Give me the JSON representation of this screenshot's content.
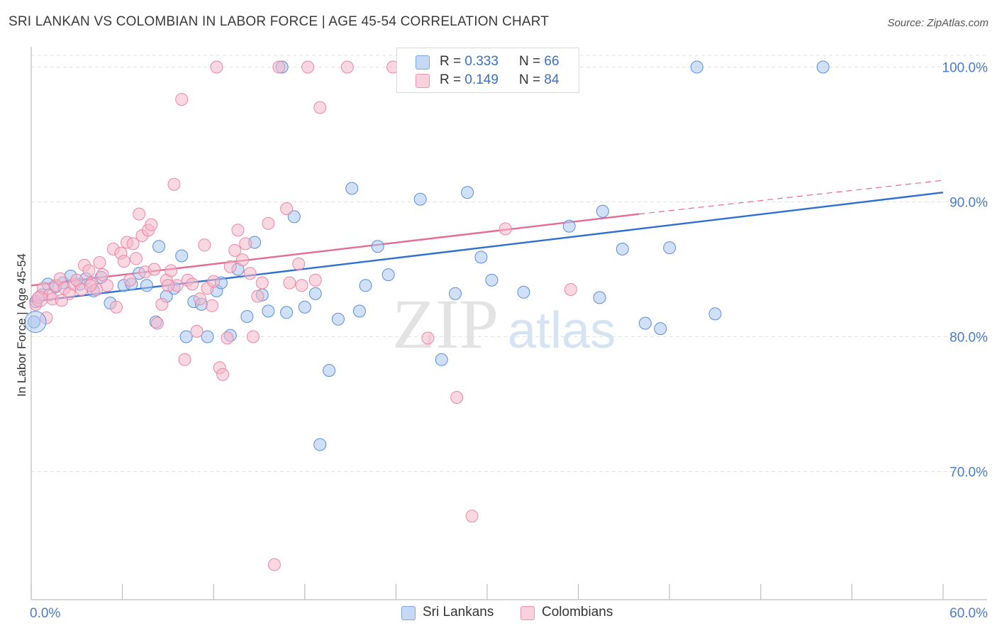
{
  "title": "SRI LANKAN VS COLOMBIAN IN LABOR FORCE | AGE 45-54 CORRELATION CHART",
  "source": "Source: ZipAtlas.com",
  "watermark": {
    "zip": "ZIP",
    "atlas": "atlas"
  },
  "legend": {
    "r_label": "R =",
    "n_label": "N =",
    "rows": [
      {
        "r": "0.333",
        "n": "66",
        "color": "#a9c6ef"
      },
      {
        "r": "0.149",
        "n": "84",
        "color": "#f6b8cb"
      }
    ]
  },
  "bottom_legend": [
    "Sri Lankans",
    "Colombians"
  ],
  "chart_data": {
    "type": "scatter",
    "title": "SRI LANKAN VS COLOMBIAN IN LABOR FORCE | AGE 45-54 CORRELATION CHART",
    "xlabel": "",
    "ylabel": "In Labor Force | Age 45-54",
    "xlim": [
      0,
      60
    ],
    "ylim": [
      60.5,
      101.5
    ],
    "x_tick_labels": [
      "0.0%",
      "60.0%"
    ],
    "y_ticks": [
      70,
      80,
      90,
      100
    ],
    "y_tick_labels": [
      "70.0%",
      "80.0%",
      "90.0%",
      "100.0%"
    ],
    "grid": true,
    "legend_position": "top-center",
    "series": [
      {
        "name": "Sri Lankans",
        "color": "#a9c6ef",
        "edge": "#5b8fd8",
        "line_color": "#2f6fd0",
        "trend": {
          "x": [
            0,
            60
          ],
          "y": [
            82.6,
            90.7
          ]
        },
        "points": [
          [
            0.1,
            81.1
          ],
          [
            0.3,
            82.6
          ],
          [
            0.7,
            83.1
          ],
          [
            1.1,
            83.9
          ],
          [
            1.6,
            83.7
          ],
          [
            2.1,
            84.0
          ],
          [
            2.6,
            84.5
          ],
          [
            3.2,
            83.9
          ],
          [
            3.6,
            84.3
          ],
          [
            4.1,
            83.4
          ],
          [
            4.6,
            84.4
          ],
          [
            5.2,
            82.5
          ],
          [
            6.1,
            83.8
          ],
          [
            6.6,
            83.9
          ],
          [
            7.1,
            84.7
          ],
          [
            7.6,
            83.8
          ],
          [
            8.2,
            81.1
          ],
          [
            8.4,
            86.7
          ],
          [
            8.9,
            83.0
          ],
          [
            9.4,
            83.6
          ],
          [
            9.9,
            86.0
          ],
          [
            10.2,
            80.0
          ],
          [
            10.7,
            82.6
          ],
          [
            11.2,
            82.4
          ],
          [
            11.6,
            80.0
          ],
          [
            12.2,
            83.4
          ],
          [
            12.5,
            84.0
          ],
          [
            13.1,
            80.1
          ],
          [
            13.6,
            85.0
          ],
          [
            14.2,
            81.5
          ],
          [
            14.7,
            87.0
          ],
          [
            15.2,
            83.1
          ],
          [
            15.6,
            81.9
          ],
          [
            16.5,
            100.0
          ],
          [
            16.8,
            81.8
          ],
          [
            17.3,
            88.9
          ],
          [
            18.0,
            82.2
          ],
          [
            18.7,
            83.2
          ],
          [
            19.0,
            72.0
          ],
          [
            19.6,
            77.5
          ],
          [
            20.2,
            81.3
          ],
          [
            21.1,
            91.0
          ],
          [
            21.6,
            81.9
          ],
          [
            22.0,
            83.8
          ],
          [
            22.8,
            86.7
          ],
          [
            23.5,
            84.6
          ],
          [
            25.6,
            90.2
          ],
          [
            27.0,
            78.3
          ],
          [
            27.5,
            100.0
          ],
          [
            27.9,
            83.2
          ],
          [
            28.7,
            90.7
          ],
          [
            29.6,
            85.9
          ],
          [
            30.0,
            100.0
          ],
          [
            30.3,
            84.2
          ],
          [
            32.4,
            83.3
          ],
          [
            34.0,
            100.0
          ],
          [
            35.4,
            88.2
          ],
          [
            37.4,
            82.9
          ],
          [
            37.6,
            89.3
          ],
          [
            38.9,
            86.5
          ],
          [
            40.4,
            81.0
          ],
          [
            41.4,
            80.6
          ],
          [
            42.0,
            86.6
          ],
          [
            43.8,
            100.0
          ],
          [
            45.0,
            81.7
          ],
          [
            52.1,
            100.0
          ]
        ]
      },
      {
        "name": "Colombians",
        "color": "#f6b8cb",
        "edge": "#e987a7",
        "line_color": "#e46b94",
        "trend": {
          "x": [
            0,
            40
          ],
          "y": [
            83.8,
            89.1
          ]
        },
        "trend_dashed": {
          "x": [
            40,
            60
          ],
          "y": [
            89.1,
            91.6
          ]
        },
        "points": [
          [
            0.3,
            82.4
          ],
          [
            0.5,
            82.9
          ],
          [
            0.8,
            83.6
          ],
          [
            1.0,
            81.4
          ],
          [
            1.2,
            83.1
          ],
          [
            1.4,
            82.8
          ],
          [
            1.6,
            83.8
          ],
          [
            1.9,
            84.3
          ],
          [
            2.2,
            83.6
          ],
          [
            2.5,
            83.2
          ],
          [
            2.8,
            83.9
          ],
          [
            3.0,
            84.2
          ],
          [
            3.3,
            83.5
          ],
          [
            3.5,
            85.3
          ],
          [
            3.8,
            84.9
          ],
          [
            4.0,
            84.0
          ],
          [
            4.3,
            83.5
          ],
          [
            4.5,
            85.5
          ],
          [
            4.7,
            84.6
          ],
          [
            5.0,
            83.8
          ],
          [
            5.4,
            86.5
          ],
          [
            5.6,
            82.2
          ],
          [
            5.9,
            86.2
          ],
          [
            6.1,
            85.6
          ],
          [
            6.3,
            87.0
          ],
          [
            6.5,
            84.2
          ],
          [
            6.9,
            85.8
          ],
          [
            7.1,
            89.1
          ],
          [
            7.3,
            87.5
          ],
          [
            7.5,
            84.8
          ],
          [
            7.7,
            87.9
          ],
          [
            7.9,
            88.3
          ],
          [
            8.1,
            85.0
          ],
          [
            8.3,
            81.0
          ],
          [
            8.6,
            82.4
          ],
          [
            8.9,
            84.2
          ],
          [
            9.2,
            84.9
          ],
          [
            9.4,
            91.3
          ],
          [
            9.6,
            83.8
          ],
          [
            9.9,
            97.6
          ],
          [
            10.1,
            78.3
          ],
          [
            10.3,
            84.2
          ],
          [
            10.6,
            83.9
          ],
          [
            10.9,
            80.4
          ],
          [
            11.1,
            82.8
          ],
          [
            11.4,
            86.8
          ],
          [
            11.6,
            83.6
          ],
          [
            11.9,
            82.3
          ],
          [
            12.2,
            100.0
          ],
          [
            12.4,
            77.7
          ],
          [
            12.6,
            77.2
          ],
          [
            12.9,
            79.9
          ],
          [
            13.1,
            85.2
          ],
          [
            13.4,
            86.4
          ],
          [
            13.6,
            87.9
          ],
          [
            13.9,
            85.7
          ],
          [
            14.1,
            86.9
          ],
          [
            14.4,
            84.7
          ],
          [
            14.6,
            80.0
          ],
          [
            15.2,
            84.0
          ],
          [
            15.6,
            88.4
          ],
          [
            16.3,
            100.0
          ],
          [
            16.8,
            89.5
          ],
          [
            17.6,
            85.4
          ],
          [
            17.8,
            83.8
          ],
          [
            18.2,
            100.0
          ],
          [
            18.7,
            84.2
          ],
          [
            19.0,
            97.0
          ],
          [
            16.0,
            63.1
          ],
          [
            20.8,
            100.0
          ],
          [
            23.8,
            100.0
          ],
          [
            26.1,
            79.9
          ],
          [
            27.2,
            100.0
          ],
          [
            28.0,
            75.5
          ],
          [
            29.0,
            66.7
          ],
          [
            31.2,
            88.0
          ],
          [
            35.5,
            83.5
          ],
          [
            3.9,
            83.8
          ],
          [
            2.0,
            82.7
          ],
          [
            6.7,
            86.9
          ],
          [
            9.0,
            83.8
          ],
          [
            12.0,
            84.1
          ],
          [
            14.9,
            83.0
          ],
          [
            17.0,
            84.0
          ]
        ]
      }
    ]
  }
}
